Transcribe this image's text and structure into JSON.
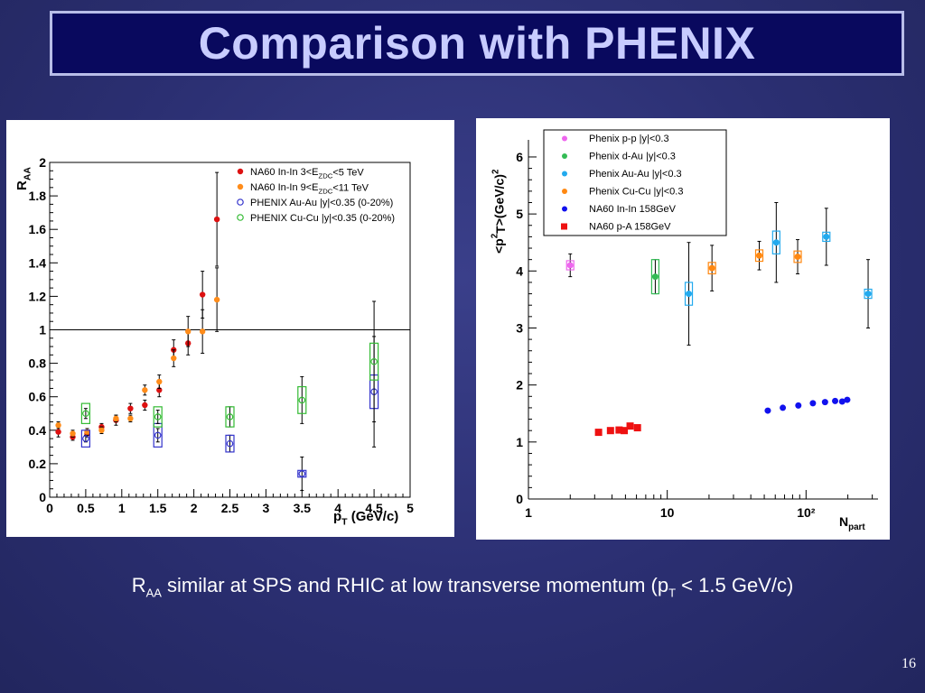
{
  "slide": {
    "title": "Comparison with PHENIX",
    "caption_R": "R",
    "caption_AA": "AA",
    "caption_main": " similar at SPS and RHIC at low transverse momentum (p",
    "caption_T": "T",
    "caption_tail": " < 1.5 GeV/c)",
    "page_number": "16"
  },
  "chart_data": [
    {
      "type": "scatter",
      "ylabel": "R_AA",
      "xlabel": "p_T (GeV/c)",
      "xlim": [
        0,
        5
      ],
      "ylim": [
        0,
        2
      ],
      "xticks": [
        "0",
        "0.5",
        "1",
        "1.5",
        "2",
        "2.5",
        "3",
        "3.5",
        "4",
        "4.5",
        "5"
      ],
      "yticks": [
        "0",
        "0.2",
        "0.4",
        "0.6",
        "0.8",
        "1",
        "1.2",
        "1.4",
        "1.6",
        "1.8",
        "2"
      ],
      "reference_line": 1,
      "legend": [
        {
          "label": "NA60 In-In 3<E_ZDC<5 TeV",
          "color": "#dd1111",
          "marker": "filled-circle"
        },
        {
          "label": "NA60 In-In 9<E_ZDC<11 TeV",
          "color": "#ff8c1a",
          "marker": "filled-circle"
        },
        {
          "label": "PHENIX Au-Au |y|<0.35 (0-20%)",
          "color": "#3333cc",
          "marker": "open-circle"
        },
        {
          "label": "PHENIX Cu-Cu |y|<0.35 (0-20%)",
          "color": "#33bb33",
          "marker": "open-circle"
        }
      ],
      "series": [
        {
          "name": "NA60 In-In 3<E_ZDC<5 TeV",
          "color": "#dd1111",
          "points": [
            {
              "x": 0.12,
              "y": 0.39,
              "err": 0.03
            },
            {
              "x": 0.32,
              "y": 0.36,
              "err": 0.02
            },
            {
              "x": 0.52,
              "y": 0.38,
              "err": 0.02
            },
            {
              "x": 0.72,
              "y": 0.42,
              "err": 0.02
            },
            {
              "x": 0.92,
              "y": 0.46,
              "err": 0.03
            },
            {
              "x": 1.12,
              "y": 0.53,
              "err": 0.03
            },
            {
              "x": 1.32,
              "y": 0.55,
              "err": 0.03
            },
            {
              "x": 1.52,
              "y": 0.64,
              "err": 0.04
            },
            {
              "x": 1.72,
              "y": 0.88,
              "err": 0.06
            },
            {
              "x": 1.92,
              "y": 0.92,
              "err": 0.07
            },
            {
              "x": 2.12,
              "y": 1.21,
              "err": 0.14
            },
            {
              "x": 2.32,
              "y": 1.66,
              "err": 0.28
            }
          ]
        },
        {
          "name": "NA60 In-In 9<E_ZDC<11 TeV",
          "color": "#ff8c1a",
          "points": [
            {
              "x": 0.12,
              "y": 0.43,
              "err": 0.02
            },
            {
              "x": 0.32,
              "y": 0.38,
              "err": 0.02
            },
            {
              "x": 0.52,
              "y": 0.39,
              "err": 0.02
            },
            {
              "x": 0.72,
              "y": 0.4,
              "err": 0.02
            },
            {
              "x": 0.92,
              "y": 0.47,
              "err": 0.02
            },
            {
              "x": 1.12,
              "y": 0.47,
              "err": 0.02
            },
            {
              "x": 1.32,
              "y": 0.64,
              "err": 0.03
            },
            {
              "x": 1.52,
              "y": 0.69,
              "err": 0.04
            },
            {
              "x": 1.72,
              "y": 0.83,
              "err": 0.05
            },
            {
              "x": 1.92,
              "y": 0.99,
              "err": 0.09
            },
            {
              "x": 2.12,
              "y": 0.99,
              "err": 0.13
            },
            {
              "x": 2.32,
              "y": 1.18,
              "err": 0.19
            }
          ]
        },
        {
          "name": "PHENIX Au-Au |y|<0.35 (0-20%)",
          "color": "#3333cc",
          "points": [
            {
              "x": 0.5,
              "y": 0.35,
              "err": 0.02,
              "sys": 0.05
            },
            {
              "x": 1.5,
              "y": 0.37,
              "err": 0.04,
              "sys": 0.07
            },
            {
              "x": 2.5,
              "y": 0.32,
              "err": 0.05,
              "sys": 0.05
            },
            {
              "x": 3.5,
              "y": 0.14,
              "err": 0.1,
              "sys": 0.02
            },
            {
              "x": 4.5,
              "y": 0.63,
              "err": 0.33,
              "sys": 0.1
            }
          ]
        },
        {
          "name": "PHENIX Cu-Cu |y|<0.35 (0-20%)",
          "color": "#33bb33",
          "points": [
            {
              "x": 0.5,
              "y": 0.5,
              "err": 0.03,
              "sys": 0.06
            },
            {
              "x": 1.5,
              "y": 0.48,
              "err": 0.04,
              "sys": 0.06
            },
            {
              "x": 2.5,
              "y": 0.48,
              "err": 0.06,
              "sys": 0.06
            },
            {
              "x": 3.5,
              "y": 0.58,
              "err": 0.14,
              "sys": 0.08
            },
            {
              "x": 4.5,
              "y": 0.81,
              "err": 0.36,
              "sys": 0.11
            }
          ]
        }
      ]
    },
    {
      "type": "scatter",
      "ylabel": "<p_T^2> (GeV/c)^2",
      "xlabel": "N_part",
      "xscale": "log",
      "xlim": [
        1,
        330
      ],
      "ylim": [
        0,
        6.3
      ],
      "xticks": [
        {
          "v": 1,
          "label": "1"
        },
        {
          "v": 10,
          "label": "10"
        },
        {
          "v": 100,
          "label": "10²"
        }
      ],
      "yticks": [
        "0",
        "1",
        "2",
        "3",
        "4",
        "5",
        "6"
      ],
      "legend": [
        {
          "label": "Phenix p-p |y|<0.3",
          "color": "#ee66ee",
          "marker": "filled-circle"
        },
        {
          "label": "Phenix d-Au |y|<0.3",
          "color": "#33bb55",
          "marker": "filled-circle"
        },
        {
          "label": "Phenix Au-Au |y|<0.3",
          "color": "#22aaee",
          "marker": "filled-circle"
        },
        {
          "label": "Phenix Cu-Cu |y|<0.3",
          "color": "#ff8811",
          "marker": "filled-circle"
        },
        {
          "label": "NA60 In-In 158GeV",
          "color": "#1111ee",
          "marker": "filled-circle"
        },
        {
          "label": "NA60 p-A 158GeV",
          "color": "#ee1111",
          "marker": "filled-square"
        }
      ],
      "series": [
        {
          "name": "Phenix p-p |y|<0.3",
          "color": "#ee66ee",
          "points": [
            {
              "x": 2,
              "y": 4.1,
              "err": 0.2,
              "sys": 0.08
            }
          ]
        },
        {
          "name": "Phenix d-Au |y|<0.3",
          "color": "#33bb55",
          "points": [
            {
              "x": 8.2,
              "y": 3.9,
              "err": 0.3,
              "sys": 0.3
            }
          ]
        },
        {
          "name": "Phenix Au-Au |y|<0.3",
          "color": "#22aaee",
          "points": [
            {
              "x": 14.3,
              "y": 3.6,
              "err": 0.9,
              "sys": 0.2
            },
            {
              "x": 61,
              "y": 4.5,
              "err": 0.7,
              "sys": 0.2
            },
            {
              "x": 140,
              "y": 4.6,
              "err": 0.5,
              "sys": 0.08
            },
            {
              "x": 280,
              "y": 3.6,
              "err": 0.6,
              "sys": 0.08
            }
          ]
        },
        {
          "name": "Phenix Cu-Cu |y|<0.3",
          "color": "#ff8811",
          "points": [
            {
              "x": 21,
              "y": 4.05,
              "err": 0.4,
              "sys": 0.1
            },
            {
              "x": 46,
              "y": 4.27,
              "err": 0.25,
              "sys": 0.1
            },
            {
              "x": 87,
              "y": 4.25,
              "err": 0.3,
              "sys": 0.1
            }
          ]
        },
        {
          "name": "NA60 In-In 158GeV",
          "color": "#1111ee",
          "points": [
            {
              "x": 53,
              "y": 1.55
            },
            {
              "x": 68,
              "y": 1.6
            },
            {
              "x": 88,
              "y": 1.64
            },
            {
              "x": 112,
              "y": 1.68
            },
            {
              "x": 137,
              "y": 1.7
            },
            {
              "x": 162,
              "y": 1.72
            },
            {
              "x": 182,
              "y": 1.71
            },
            {
              "x": 198,
              "y": 1.74
            }
          ]
        },
        {
          "name": "NA60 p-A 158GeV",
          "color": "#ee1111",
          "points": [
            {
              "x": 3.2,
              "y": 1.17
            },
            {
              "x": 3.9,
              "y": 1.2
            },
            {
              "x": 4.5,
              "y": 1.21
            },
            {
              "x": 4.9,
              "y": 1.2
            },
            {
              "x": 5.4,
              "y": 1.28
            },
            {
              "x": 6.1,
              "y": 1.25
            }
          ]
        }
      ]
    }
  ]
}
